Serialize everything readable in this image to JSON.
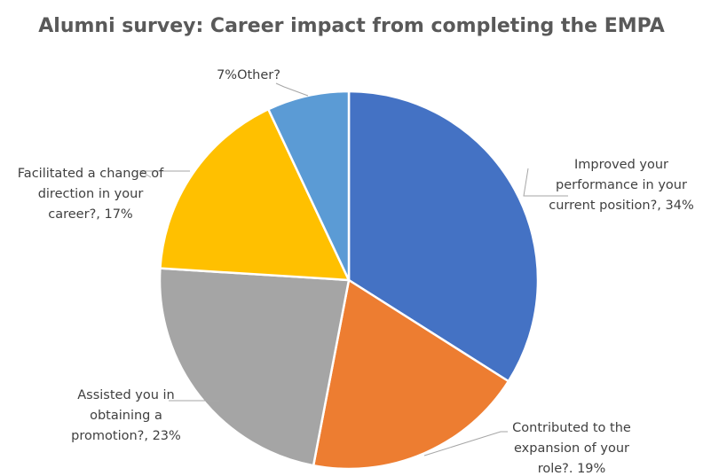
{
  "chart_data": {
    "type": "pie",
    "title": "Alumni survey: Career impact from completing the EMPA",
    "categories": [
      "Improved your performance in your current position?",
      "Contributed to the expansion of your role?",
      "Assisted you in obtaining a promotion?",
      "Facilitated a change of direction in your career?",
      "Other?"
    ],
    "values": [
      34,
      19,
      23,
      17,
      7
    ],
    "unit": "%",
    "colors": [
      "#4472c4",
      "#ed7d31",
      "#a5a5a5",
      "#ffc000",
      "#5b9bd5"
    ],
    "data_labels": [
      [
        "Improved your",
        "performance in your",
        "current position?, 34%"
      ],
      [
        "Contributed to the",
        "expansion of your",
        "role?. 19%"
      ],
      [
        "Assisted you in",
        "obtaining a",
        "promotion?, 23%"
      ],
      [
        "Facilitated a change of",
        "direction in your",
        "career?, 17%"
      ],
      [
        "7%Other?"
      ]
    ],
    "legend": "none"
  }
}
